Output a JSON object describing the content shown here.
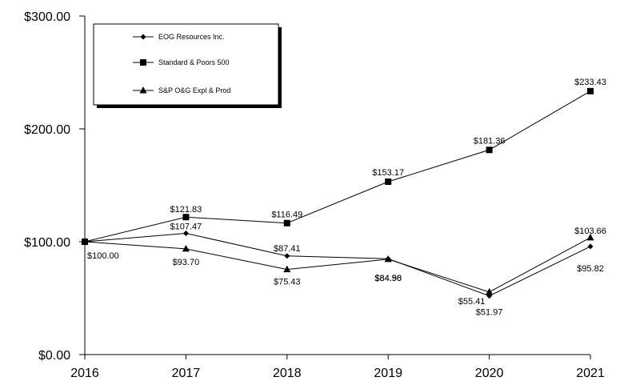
{
  "chart_data": {
    "type": "line",
    "title": "",
    "xlabel": "",
    "ylabel": "",
    "categories": [
      "2016",
      "2017",
      "2018",
      "2019",
      "2020",
      "2021"
    ],
    "ylim": [
      0,
      300
    ],
    "y_ticks": [
      "$0.00",
      "$100.00",
      "$200.00",
      "$300.00"
    ],
    "y_tick_values": [
      0,
      100,
      200,
      300
    ],
    "legend_position": "top-left",
    "grid": false,
    "series": [
      {
        "name": "EOG Resources Inc.",
        "marker": "diamond",
        "values": [
          100.0,
          107.47,
          87.41,
          84.96,
          51.97,
          95.82
        ],
        "labels": [
          "$100.00",
          "$107.47",
          "$87.41",
          "$84.96",
          "$51.97",
          "$95.82"
        ]
      },
      {
        "name": "Standard & Poors 500",
        "marker": "square",
        "values": [
          100.0,
          121.83,
          116.49,
          153.17,
          181.36,
          233.43
        ],
        "labels": [
          "",
          "$121.83",
          "$116.49",
          "$153.17",
          "$181.36",
          "$233.43"
        ]
      },
      {
        "name": "S&P O&G Expl & Prod",
        "marker": "triangle",
        "values": [
          100.0,
          93.7,
          75.43,
          84.5,
          55.41,
          103.66
        ],
        "labels": [
          "",
          "$93.70",
          "$75.43",
          "$84.50",
          "$55.41",
          "$103.66"
        ]
      }
    ]
  }
}
